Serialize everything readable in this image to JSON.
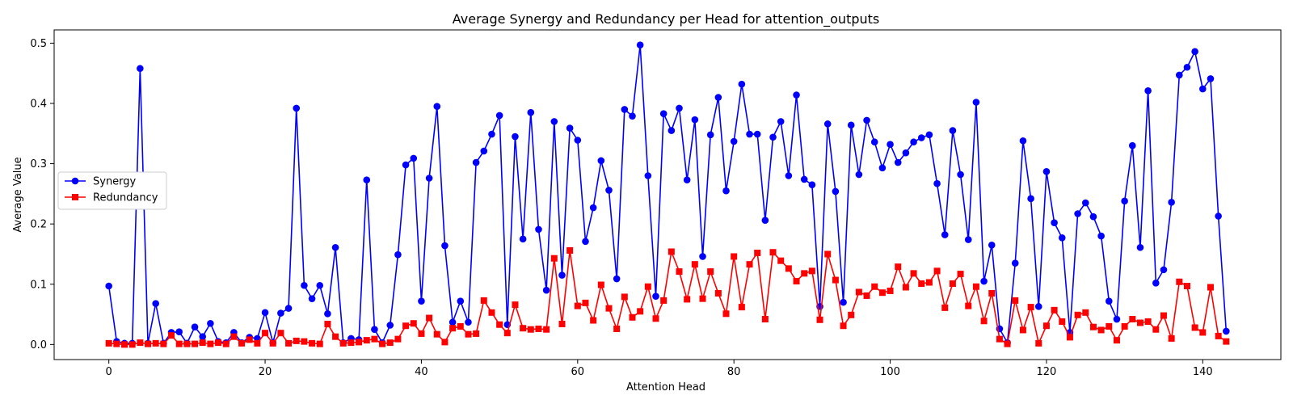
{
  "chart_data": {
    "type": "line",
    "title": "Average Synergy and Redundancy per Head for attention_outputs",
    "xlabel": "Attention Head",
    "ylabel": "Average Value",
    "xlim": [
      -7,
      150
    ],
    "ylim": [
      -0.025,
      0.522
    ],
    "xticks": [
      0,
      20,
      40,
      60,
      80,
      100,
      120,
      140
    ],
    "xtick_labels": [
      "0",
      "20",
      "40",
      "60",
      "80",
      "100",
      "120",
      "140"
    ],
    "yticks": [
      0.0,
      0.1,
      0.2,
      0.3,
      0.4,
      0.5
    ],
    "ytick_labels": [
      "0.0",
      "0.1",
      "0.2",
      "0.3",
      "0.4",
      "0.5"
    ],
    "grid": false,
    "legend_position": "center-left",
    "series": [
      {
        "name": "Synergy",
        "color": "#0000ff",
        "marker": "circle",
        "values": [
          0.097,
          0.005,
          0.002,
          0.002,
          0.458,
          0.002,
          0.068,
          0.002,
          0.02,
          0.021,
          0.002,
          0.029,
          0.013,
          0.035,
          0.005,
          0.003,
          0.02,
          0.003,
          0.012,
          0.01,
          0.053,
          0.003,
          0.052,
          0.06,
          0.392,
          0.098,
          0.076,
          0.098,
          0.051,
          0.161,
          0.003,
          0.01,
          0.008,
          0.273,
          0.025,
          0.003,
          0.032,
          0.149,
          0.298,
          0.309,
          0.072,
          0.276,
          0.395,
          0.164,
          0.037,
          0.072,
          0.037,
          0.302,
          0.321,
          0.349,
          0.38,
          0.033,
          0.345,
          0.175,
          0.385,
          0.191,
          0.09,
          0.37,
          0.115,
          0.359,
          0.339,
          0.171,
          0.227,
          0.305,
          0.256,
          0.109,
          0.39,
          0.379,
          0.497,
          0.28,
          0.08,
          0.383,
          0.355,
          0.392,
          0.273,
          0.373,
          0.146,
          0.348,
          0.41,
          0.255,
          0.337,
          0.432,
          0.349,
          0.349,
          0.206,
          0.344,
          0.37,
          0.28,
          0.414,
          0.274,
          0.265,
          0.063,
          0.366,
          0.254,
          0.07,
          0.364,
          0.282,
          0.372,
          0.336,
          0.293,
          0.332,
          0.302,
          0.318,
          0.336,
          0.343,
          0.348,
          0.267,
          0.182,
          0.355,
          0.282,
          0.174,
          0.402,
          0.105,
          0.165,
          0.026,
          0.003,
          0.135,
          0.338,
          0.242,
          0.063,
          0.287,
          0.202,
          0.177,
          0.02,
          0.217,
          0.235,
          0.212,
          0.18,
          0.072,
          0.042,
          0.238,
          0.33,
          0.161,
          0.421,
          0.102,
          0.124,
          0.236,
          0.447,
          0.46,
          0.486,
          0.424,
          0.441,
          0.213,
          0.022
        ]
      },
      {
        "name": "Redundancy",
        "color": "#ff0000",
        "marker": "square",
        "values": [
          0.002,
          0.001,
          0.0,
          0.0,
          0.003,
          0.001,
          0.002,
          0.001,
          0.015,
          0.001,
          0.001,
          0.001,
          0.003,
          0.001,
          0.003,
          0.001,
          0.013,
          0.002,
          0.008,
          0.002,
          0.019,
          0.002,
          0.019,
          0.002,
          0.006,
          0.005,
          0.002,
          0.001,
          0.034,
          0.013,
          0.002,
          0.003,
          0.004,
          0.007,
          0.009,
          0.001,
          0.003,
          0.009,
          0.031,
          0.035,
          0.018,
          0.044,
          0.017,
          0.004,
          0.027,
          0.03,
          0.017,
          0.018,
          0.073,
          0.053,
          0.033,
          0.019,
          0.066,
          0.027,
          0.025,
          0.026,
          0.025,
          0.143,
          0.034,
          0.156,
          0.064,
          0.069,
          0.04,
          0.099,
          0.06,
          0.026,
          0.079,
          0.045,
          0.055,
          0.096,
          0.043,
          0.073,
          0.154,
          0.121,
          0.075,
          0.133,
          0.076,
          0.121,
          0.085,
          0.051,
          0.146,
          0.062,
          0.133,
          0.152,
          0.042,
          0.153,
          0.139,
          0.126,
          0.105,
          0.118,
          0.122,
          0.041,
          0.15,
          0.107,
          0.031,
          0.049,
          0.087,
          0.081,
          0.096,
          0.086,
          0.089,
          0.129,
          0.095,
          0.118,
          0.101,
          0.103,
          0.122,
          0.061,
          0.101,
          0.117,
          0.064,
          0.096,
          0.039,
          0.085,
          0.009,
          0.001,
          0.073,
          0.024,
          0.062,
          0.002,
          0.031,
          0.057,
          0.038,
          0.012,
          0.049,
          0.053,
          0.029,
          0.024,
          0.03,
          0.007,
          0.03,
          0.042,
          0.036,
          0.038,
          0.025,
          0.048,
          0.01,
          0.104,
          0.097,
          0.028,
          0.02,
          0.095,
          0.014,
          0.005
        ]
      }
    ]
  }
}
